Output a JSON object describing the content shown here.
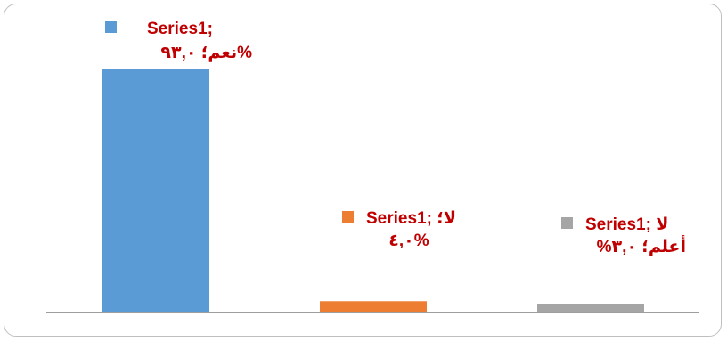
{
  "chart_data": {
    "type": "bar",
    "series": [
      {
        "name": "Series1",
        "values": [
          93.0,
          4.0,
          3.0
        ],
        "colors": [
          "#5b9bd5",
          "#ed7d31",
          "#a5a5a5"
        ]
      }
    ],
    "categories": [
      "نعم",
      "لا",
      "لا أعلم"
    ],
    "ylim": [
      0,
      100
    ],
    "grid": false,
    "data_labels": [
      {
        "line1": "Series1;",
        "line2": "%نعم؛ ٩٣,٠"
      },
      {
        "line1": "Series1; لا؛",
        "line2": "٤,٠%"
      },
      {
        "line1": "Series1; لا",
        "line2": "أعلم؛ ٣,٠%"
      }
    ]
  }
}
